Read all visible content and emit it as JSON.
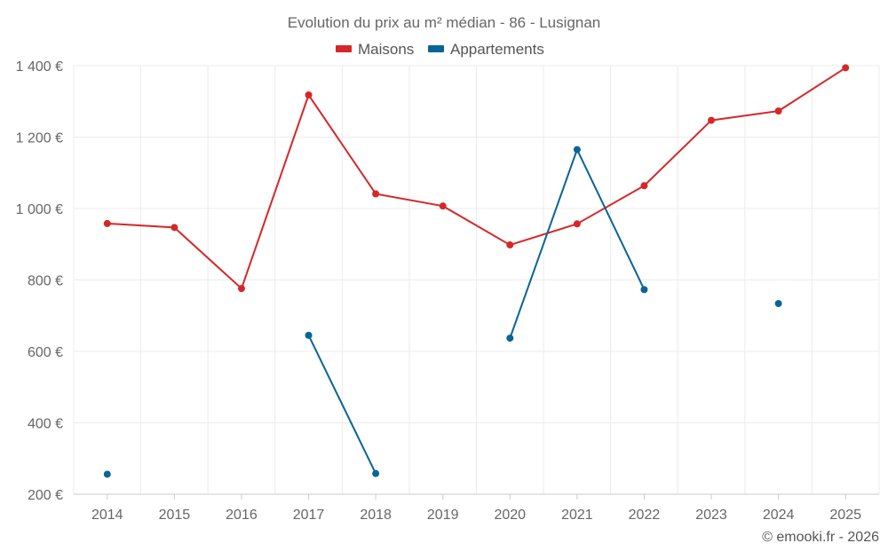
{
  "chart_data": {
    "type": "line",
    "title": "Evolution du prix au m² médian - 86 - Lusignan",
    "categories": [
      "2014",
      "2015",
      "2016",
      "2017",
      "2018",
      "2019",
      "2020",
      "2021",
      "2022",
      "2023",
      "2024",
      "2025"
    ],
    "series": [
      {
        "name": "Maisons",
        "color": "#d62728",
        "values": [
          958,
          947,
          776,
          1318,
          1041,
          1007,
          898,
          957,
          1064,
          1247,
          1273,
          1394
        ]
      },
      {
        "name": "Appartements",
        "color": "#0a6496",
        "values": [
          256,
          null,
          null,
          645,
          258,
          null,
          637,
          1165,
          773,
          null,
          734,
          null
        ]
      }
    ],
    "ylim": [
      200,
      1400
    ],
    "yticks": [
      200,
      400,
      600,
      800,
      1000,
      1200,
      1400
    ],
    "ytick_labels": [
      "200 €",
      "400 €",
      "600 €",
      "800 €",
      "1 000 €",
      "1 200 €",
      "1 400 €"
    ],
    "xlabel": "",
    "ylabel": "",
    "grid": true,
    "legend_position": "top-center",
    "credit": "© emooki.fr - 2026"
  }
}
